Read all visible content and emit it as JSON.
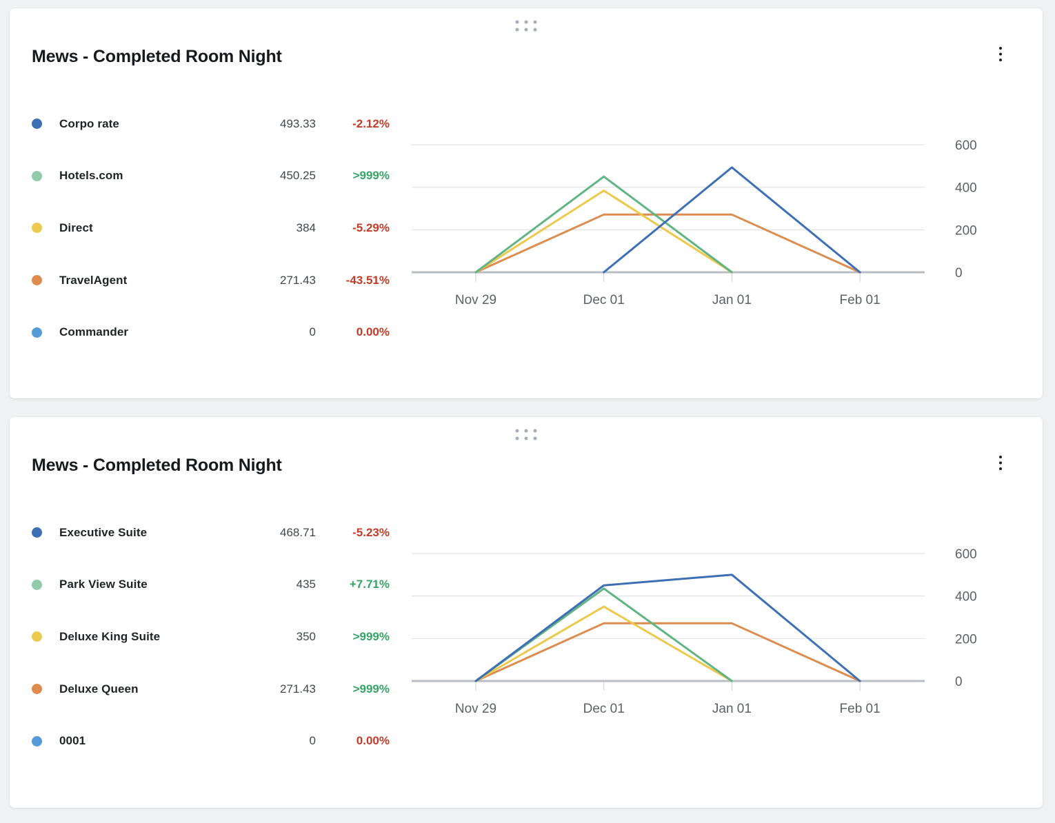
{
  "page": {
    "background_color": "#F0F1F3"
  },
  "colors": {
    "negative": "#C23B27",
    "positive": "#34A466"
  },
  "cards": [
    {
      "title": "Mews - Completed Room Night",
      "icons": {
        "drag_handle": "drag-dots-icon",
        "menu": "kebab-menu-icon"
      },
      "legend": [
        {
          "label": "Corpo rate",
          "value": "493.33",
          "change": "-2.12%",
          "tone": "negative",
          "dot_color": "#3E6FB6"
        },
        {
          "label": "Hotels.com",
          "value": "450.25",
          "change": ">999%",
          "tone": "positive",
          "dot_color": "#90CBAB"
        },
        {
          "label": "Direct",
          "value": "384",
          "change": "-5.29%",
          "tone": "negative",
          "dot_color": "#ECC94F"
        },
        {
          "label": "TravelAgent",
          "value": "271.43",
          "change": "-43.51%",
          "tone": "negative",
          "dot_color": "#DD8C4D"
        },
        {
          "label": "Commander",
          "value": "0",
          "change": "0.00%",
          "tone": "negative",
          "dot_color": "#569BD8"
        }
      ]
    },
    {
      "title": "Mews - Completed Room Night",
      "icons": {
        "drag_handle": "drag-dots-icon",
        "menu": "kebab-menu-icon"
      },
      "legend": [
        {
          "label": "Executive Suite",
          "value": "468.71",
          "change": "-5.23%",
          "tone": "negative",
          "dot_color": "#3E6FB6"
        },
        {
          "label": "Park View Suite",
          "value": "435",
          "change": "+7.71%",
          "tone": "positive",
          "dot_color": "#90CBAB"
        },
        {
          "label": "Deluxe King Suite",
          "value": "350",
          "change": ">999%",
          "tone": "positive",
          "dot_color": "#ECC94F"
        },
        {
          "label": "Deluxe Queen",
          "value": "271.43",
          "change": ">999%",
          "tone": "positive",
          "dot_color": "#DD8C4D"
        },
        {
          "label": "0001",
          "value": "0",
          "change": "0.00%",
          "tone": "negative",
          "dot_color": "#569BD8"
        }
      ]
    }
  ],
  "chart_data": [
    {
      "type": "line",
      "title": "Mews - Completed Room Night",
      "categories": [
        "Nov 29",
        "Dec 01",
        "Jan 01",
        "Feb 01"
      ],
      "y_ticks": [
        600,
        400,
        200,
        0
      ],
      "ylim": [
        0,
        600
      ],
      "xlabel": "",
      "ylabel": "",
      "grid": true,
      "y_axis_position": "right",
      "legend_position": "left",
      "series": [
        {
          "name": "Corpo rate",
          "color": "#3E6FB5",
          "points": [
            [
              "Dec 01",
              0
            ],
            [
              "Jan 01",
              493.33
            ],
            [
              "Feb 01",
              0
            ]
          ]
        },
        {
          "name": "Hotels.com",
          "color": "#60B483",
          "points": [
            [
              "Nov 29",
              0
            ],
            [
              "Dec 01",
              450.25
            ],
            [
              "Jan 01",
              0
            ]
          ]
        },
        {
          "name": "Direct",
          "color": "#ECC84B",
          "points": [
            [
              "Nov 29",
              0
            ],
            [
              "Dec 01",
              384
            ],
            [
              "Jan 01",
              0
            ]
          ]
        },
        {
          "name": "TravelAgent",
          "color": "#DC8C4E",
          "points": [
            [
              "Nov 29",
              0
            ],
            [
              "Dec 01",
              271.43
            ],
            [
              "Jan 01",
              271.43
            ],
            [
              "Feb 01",
              0
            ]
          ]
        },
        {
          "name": "Commander",
          "color": "#569BD8",
          "points": [
            [
              "Nov 29",
              0
            ],
            [
              "Dec 01",
              0
            ],
            [
              "Jan 01",
              0
            ],
            [
              "Feb 01",
              0
            ]
          ]
        }
      ]
    },
    {
      "type": "line",
      "title": "Mews - Completed Room Night",
      "categories": [
        "Nov 29",
        "Dec 01",
        "Jan 01",
        "Feb 01"
      ],
      "y_ticks": [
        600,
        400,
        200,
        0
      ],
      "ylim": [
        0,
        600
      ],
      "xlabel": "",
      "ylabel": "",
      "grid": true,
      "y_axis_position": "right",
      "legend_position": "left",
      "series": [
        {
          "name": "Executive Suite",
          "color": "#3E6FB5",
          "points": [
            [
              "Nov 29",
              0
            ],
            [
              "Dec 01",
              450
            ],
            [
              "Jan 01",
              500
            ],
            [
              "Feb 01",
              0
            ]
          ]
        },
        {
          "name": "Park View Suite",
          "color": "#60B483",
          "points": [
            [
              "Nov 29",
              0
            ],
            [
              "Dec 01",
              435
            ],
            [
              "Jan 01",
              0
            ]
          ]
        },
        {
          "name": "Deluxe King Suite",
          "color": "#ECC84B",
          "points": [
            [
              "Nov 29",
              0
            ],
            [
              "Dec 01",
              350
            ],
            [
              "Jan 01",
              0
            ]
          ]
        },
        {
          "name": "Deluxe Queen",
          "color": "#DC8C4E",
          "points": [
            [
              "Nov 29",
              0
            ],
            [
              "Dec 01",
              271.43
            ],
            [
              "Jan 01",
              271.43
            ],
            [
              "Feb 01",
              0
            ]
          ]
        },
        {
          "name": "0001",
          "color": "#569BD8",
          "points": [
            [
              "Nov 29",
              0
            ],
            [
              "Dec 01",
              0
            ],
            [
              "Jan 01",
              0
            ],
            [
              "Feb 01",
              0
            ]
          ]
        }
      ]
    }
  ]
}
